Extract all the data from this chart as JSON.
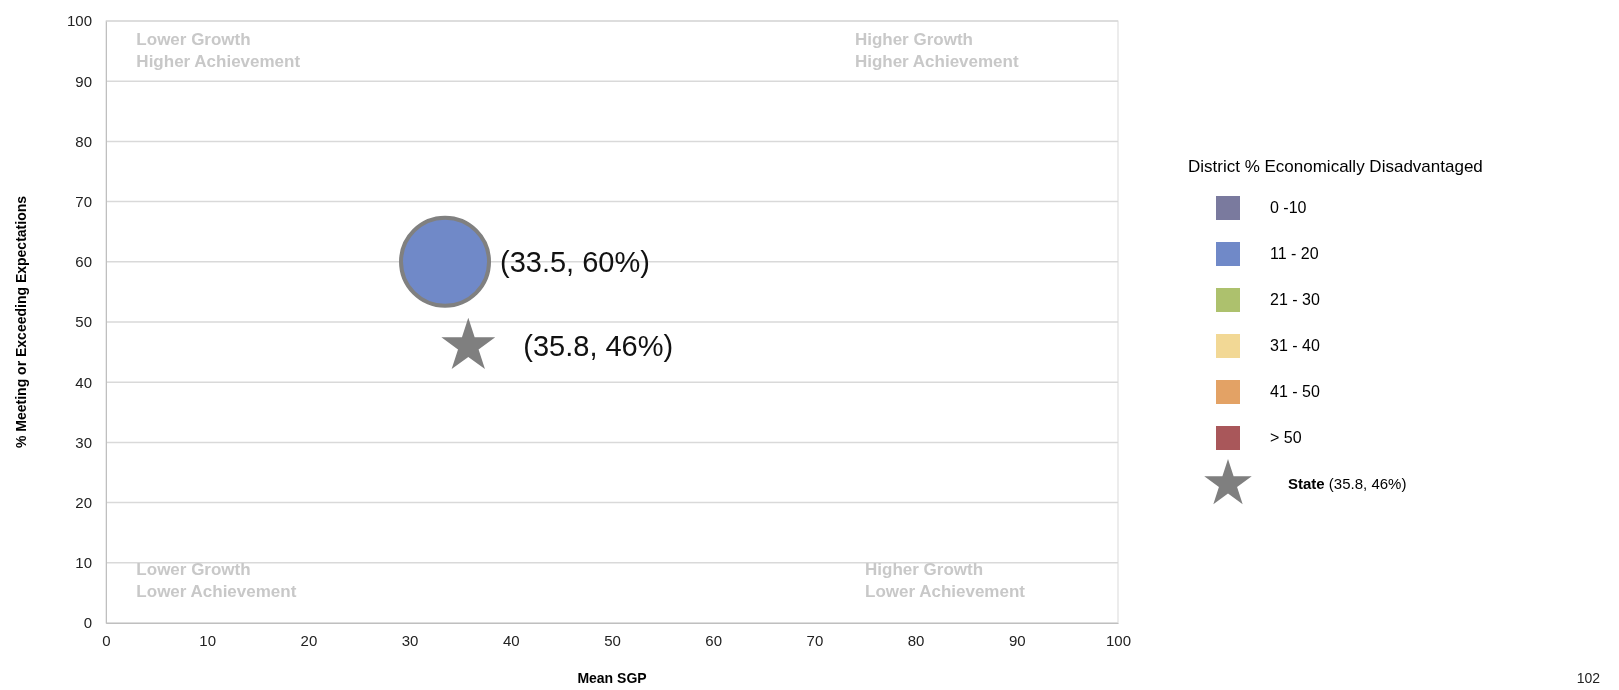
{
  "chart_data": {
    "type": "scatter",
    "xlabel": "Mean SGP",
    "ylabel": "% Meeting or Exceeding Expectations",
    "legend_title": "District % Economically Disadvantaged",
    "xlim": [
      0,
      100
    ],
    "xticks": [
      0,
      10,
      20,
      30,
      40,
      50,
      60,
      70,
      80,
      90,
      100
    ],
    "ylim": [
      0,
      100
    ],
    "yticks": [
      0,
      10,
      20,
      30,
      40,
      50,
      60,
      70,
      80,
      90,
      100
    ],
    "grid": "y",
    "legend": "right",
    "series": [
      {
        "name": "0 -10",
        "color": "#7a7a9e",
        "marker": "circle"
      },
      {
        "name": "11 - 20",
        "color": "#7089c8",
        "marker": "circle",
        "x": [
          33.5
        ],
        "values": [
          60
        ],
        "value_labels": [
          "(33.5, 60%)"
        ]
      },
      {
        "name": "21 - 30",
        "color": "#adc16d",
        "marker": "circle"
      },
      {
        "name": "31 - 40",
        "color": "#f2d895",
        "marker": "circle"
      },
      {
        "name": "41 - 50",
        "color": "#e3a265",
        "marker": "circle"
      },
      {
        "name": "> 50",
        "color": "#a9575a",
        "marker": "circle"
      },
      {
        "name": "State",
        "color": "#7f7f7f",
        "marker": "star",
        "x": [
          35.8
        ],
        "values": [
          46
        ],
        "value_labels": [
          "(35.8, 46%)"
        ]
      }
    ],
    "annotations": [
      "Lower Growth\nHigher Achievement",
      "Higher Growth\nHigher Achievement",
      "Lower Growth\nLower Achievement",
      "Higher Growth\nLower Achievement",
      "102"
    ]
  }
}
